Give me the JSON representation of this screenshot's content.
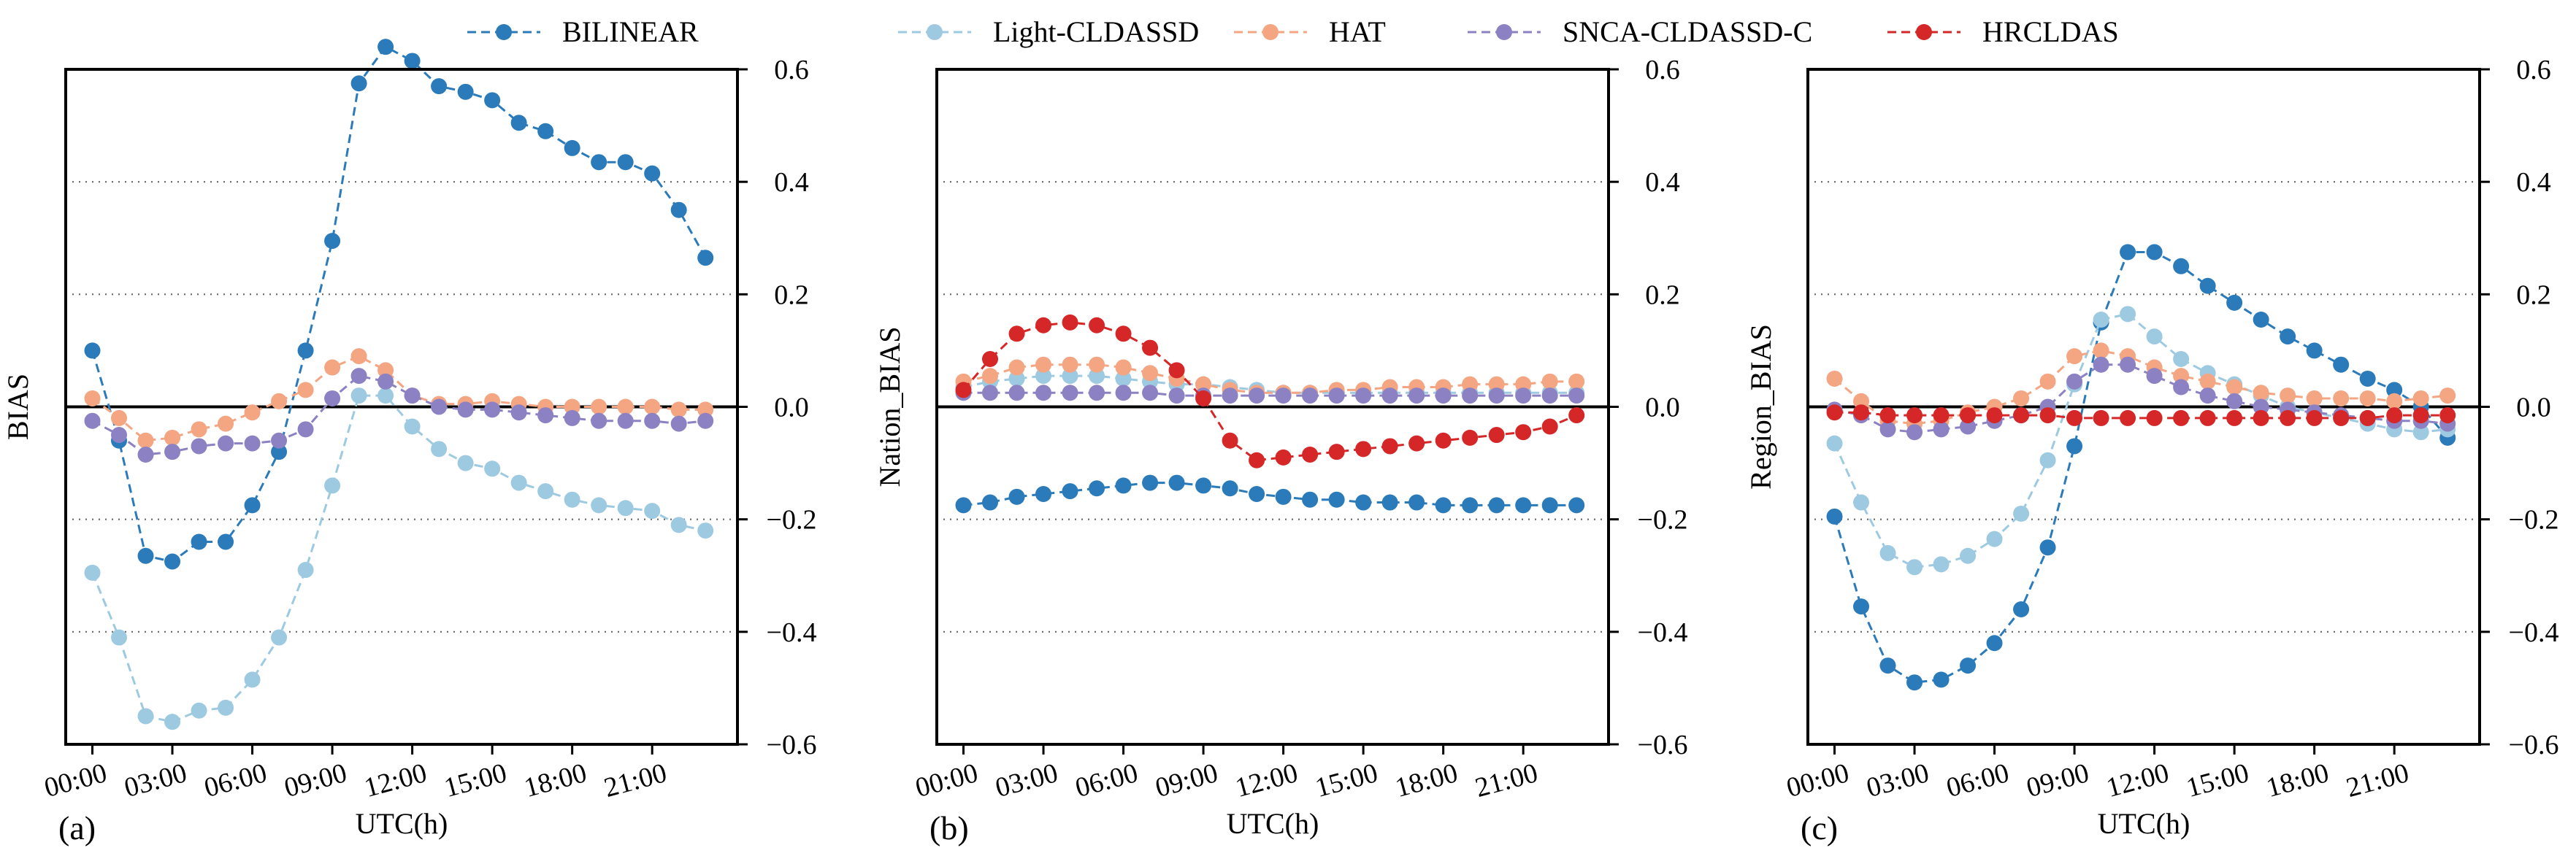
{
  "colors": {
    "BILINEAR": "#2b7bba",
    "Light-CLDASSD": "#9ecae1",
    "HAT": "#f4a582",
    "SNCA-CLDASSD-C": "#8c82c3",
    "HRCLDAS": "#d62728"
  },
  "legend": {
    "placement": "top-center",
    "entries": [
      "BILINEAR",
      "Light-CLDASSD",
      "HAT",
      "SNCA-CLDASSD-C",
      "HRCLDAS"
    ]
  },
  "chart_data": [
    {
      "type": "line",
      "panel": "(a)",
      "xlabel": "UTC(h)",
      "ylabel": "BIAS",
      "ylim": [
        -0.6,
        0.6
      ],
      "yticks": [
        "0.6",
        "0.4",
        "0.2",
        "0.0",
        "−0.2",
        "−0.4",
        "−0.6"
      ],
      "x": [
        0,
        1,
        2,
        3,
        4,
        5,
        6,
        7,
        8,
        9,
        10,
        11,
        12,
        13,
        14,
        15,
        16,
        17,
        18,
        19,
        20,
        21,
        22,
        23
      ],
      "xtick_labels": [
        "00:00",
        "03:00",
        "06:00",
        "09:00",
        "12:00",
        "15:00",
        "18:00",
        "21:00"
      ],
      "grid": "horizontal dotted",
      "series": [
        {
          "name": "BILINEAR",
          "values": [
            0.1,
            -0.06,
            -0.265,
            -0.275,
            -0.24,
            -0.24,
            -0.175,
            -0.08,
            0.1,
            0.295,
            0.575,
            0.64,
            0.615,
            0.57,
            0.56,
            0.545,
            0.505,
            0.49,
            0.46,
            0.435,
            0.435,
            0.415,
            0.35,
            0.265
          ]
        },
        {
          "name": "Light-CLDASSD",
          "values": [
            -0.295,
            -0.41,
            -0.55,
            -0.56,
            -0.54,
            -0.535,
            -0.485,
            -0.41,
            -0.29,
            -0.14,
            0.02,
            0.02,
            -0.035,
            -0.075,
            -0.1,
            -0.11,
            -0.135,
            -0.15,
            -0.165,
            -0.175,
            -0.18,
            -0.185,
            -0.21,
            -0.22
          ]
        },
        {
          "name": "HAT",
          "values": [
            0.015,
            -0.02,
            -0.06,
            -0.055,
            -0.04,
            -0.03,
            -0.01,
            0.01,
            0.03,
            0.07,
            0.09,
            0.065,
            0.02,
            0.005,
            0.005,
            0.01,
            0.005,
            0.0,
            0.0,
            0.0,
            0.0,
            0.0,
            -0.005,
            -0.005
          ]
        },
        {
          "name": "SNCA-CLDASSD-C",
          "values": [
            -0.025,
            -0.05,
            -0.085,
            -0.08,
            -0.07,
            -0.065,
            -0.065,
            -0.06,
            -0.04,
            0.015,
            0.055,
            0.045,
            0.02,
            0.0,
            -0.005,
            -0.005,
            -0.01,
            -0.015,
            -0.02,
            -0.025,
            -0.025,
            -0.025,
            -0.03,
            -0.025
          ]
        }
      ]
    },
    {
      "type": "line",
      "panel": "(b)",
      "xlabel": "UTC(h)",
      "ylabel": "Nation_BIAS",
      "ylim": [
        -0.6,
        0.6
      ],
      "yticks": [
        "0.6",
        "0.4",
        "0.2",
        "0.0",
        "−0.2",
        "−0.4",
        "−0.6"
      ],
      "x": [
        0,
        1,
        2,
        3,
        4,
        5,
        6,
        7,
        8,
        9,
        10,
        11,
        12,
        13,
        14,
        15,
        16,
        17,
        18,
        19,
        20,
        21,
        22,
        23
      ],
      "xtick_labels": [
        "00:00",
        "03:00",
        "06:00",
        "09:00",
        "12:00",
        "15:00",
        "18:00",
        "21:00"
      ],
      "grid": "horizontal dotted",
      "series": [
        {
          "name": "BILINEAR",
          "values": [
            -0.175,
            -0.17,
            -0.16,
            -0.155,
            -0.15,
            -0.145,
            -0.14,
            -0.135,
            -0.135,
            -0.14,
            -0.145,
            -0.155,
            -0.16,
            -0.165,
            -0.165,
            -0.17,
            -0.17,
            -0.17,
            -0.175,
            -0.175,
            -0.175,
            -0.175,
            -0.175,
            -0.175
          ]
        },
        {
          "name": "Light-CLDASSD",
          "values": [
            0.035,
            0.045,
            0.05,
            0.055,
            0.055,
            0.055,
            0.05,
            0.045,
            0.04,
            0.04,
            0.035,
            0.03,
            0.025,
            0.025,
            0.025,
            0.025,
            0.025,
            0.025,
            0.025,
            0.025,
            0.025,
            0.025,
            0.025,
            0.025
          ]
        },
        {
          "name": "HAT",
          "values": [
            0.045,
            0.055,
            0.07,
            0.075,
            0.075,
            0.075,
            0.07,
            0.06,
            0.05,
            0.04,
            0.03,
            0.025,
            0.025,
            0.025,
            0.03,
            0.03,
            0.035,
            0.035,
            0.035,
            0.04,
            0.04,
            0.04,
            0.045,
            0.045
          ]
        },
        {
          "name": "SNCA-CLDASSD-C",
          "values": [
            0.025,
            0.025,
            0.025,
            0.025,
            0.025,
            0.025,
            0.025,
            0.025,
            0.02,
            0.02,
            0.02,
            0.02,
            0.02,
            0.02,
            0.02,
            0.02,
            0.02,
            0.02,
            0.02,
            0.02,
            0.02,
            0.02,
            0.02,
            0.02
          ]
        },
        {
          "name": "HRCLDAS",
          "values": [
            0.03,
            0.085,
            0.13,
            0.145,
            0.15,
            0.145,
            0.13,
            0.105,
            0.065,
            0.015,
            -0.06,
            -0.095,
            -0.09,
            -0.085,
            -0.08,
            -0.075,
            -0.07,
            -0.065,
            -0.06,
            -0.055,
            -0.05,
            -0.045,
            -0.035,
            -0.015
          ]
        }
      ]
    },
    {
      "type": "line",
      "panel": "(c)",
      "xlabel": "UTC(h)",
      "ylabel": "Region_BIAS",
      "ylim": [
        -0.6,
        0.6
      ],
      "yticks": [
        "0.6",
        "0.4",
        "0.2",
        "0.0",
        "−0.2",
        "−0.4",
        "−0.6"
      ],
      "x": [
        0,
        1,
        2,
        3,
        4,
        5,
        6,
        7,
        8,
        9,
        10,
        11,
        12,
        13,
        14,
        15,
        16,
        17,
        18,
        19,
        20,
        21,
        22,
        23
      ],
      "xtick_labels": [
        "00:00",
        "03:00",
        "06:00",
        "09:00",
        "12:00",
        "15:00",
        "18:00",
        "21:00"
      ],
      "grid": "horizontal dotted",
      "series": [
        {
          "name": "BILINEAR",
          "values": [
            -0.195,
            -0.355,
            -0.46,
            -0.49,
            -0.485,
            -0.46,
            -0.42,
            -0.36,
            -0.25,
            -0.07,
            0.15,
            0.275,
            0.275,
            0.25,
            0.215,
            0.185,
            0.155,
            0.125,
            0.1,
            0.075,
            0.05,
            0.03,
            0.0,
            -0.055
          ]
        },
        {
          "name": "Light-CLDASSD",
          "values": [
            -0.065,
            -0.17,
            -0.26,
            -0.285,
            -0.28,
            -0.265,
            -0.235,
            -0.19,
            -0.095,
            0.04,
            0.155,
            0.165,
            0.125,
            0.085,
            0.06,
            0.04,
            0.02,
            0.0,
            -0.01,
            -0.02,
            -0.03,
            -0.04,
            -0.045,
            -0.04
          ]
        },
        {
          "name": "HAT",
          "values": [
            0.05,
            0.01,
            -0.025,
            -0.03,
            -0.025,
            -0.01,
            0.0,
            0.015,
            0.045,
            0.09,
            0.1,
            0.09,
            0.07,
            0.055,
            0.045,
            0.035,
            0.025,
            0.02,
            0.015,
            0.015,
            0.015,
            0.01,
            0.015,
            0.02
          ]
        },
        {
          "name": "SNCA-CLDASSD-C",
          "values": [
            -0.005,
            -0.015,
            -0.04,
            -0.045,
            -0.04,
            -0.035,
            -0.025,
            -0.015,
            0.0,
            0.045,
            0.075,
            0.075,
            0.055,
            0.035,
            0.02,
            0.01,
            0.0,
            -0.005,
            -0.01,
            -0.015,
            -0.02,
            -0.025,
            -0.025,
            -0.03
          ]
        },
        {
          "name": "HRCLDAS",
          "values": [
            -0.01,
            -0.01,
            -0.015,
            -0.015,
            -0.015,
            -0.015,
            -0.015,
            -0.015,
            -0.015,
            -0.02,
            -0.02,
            -0.02,
            -0.02,
            -0.02,
            -0.02,
            -0.02,
            -0.02,
            -0.02,
            -0.02,
            -0.02,
            -0.02,
            -0.015,
            -0.015,
            -0.015
          ]
        }
      ]
    }
  ]
}
